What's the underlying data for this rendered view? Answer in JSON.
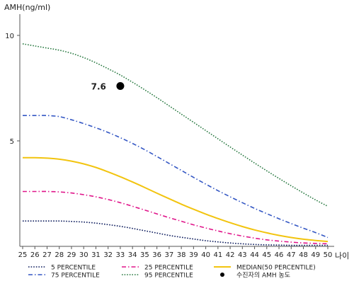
{
  "chart_data": {
    "type": "line",
    "ylabel": "AMH(ng/ml)",
    "xlabel": "나이",
    "ylim": [
      0,
      11
    ],
    "xlim": [
      25,
      50
    ],
    "y_ticks": [
      5,
      10
    ],
    "x": [
      25,
      26,
      27,
      28,
      29,
      30,
      31,
      32,
      33,
      34,
      35,
      36,
      37,
      38,
      39,
      40,
      41,
      42,
      43,
      44,
      45,
      46,
      47,
      48,
      49,
      50
    ],
    "x_tick_labels": [
      "25",
      "26",
      "27",
      "28",
      "29",
      "30",
      "31",
      "32",
      "33",
      "34",
      "35",
      "36",
      "37",
      "38",
      "39",
      "40",
      "41",
      "42",
      "43",
      "44",
      "45",
      "46",
      "47",
      "48",
      "49",
      "50"
    ],
    "grid": false,
    "legend_placement": "bottom",
    "series": [
      {
        "name": "5 PERCENTILE",
        "color": "#0b1a5c",
        "dash": "dotted",
        "values": [
          1.2,
          1.2,
          1.2,
          1.2,
          1.18,
          1.15,
          1.1,
          1.03,
          0.95,
          0.85,
          0.74,
          0.63,
          0.52,
          0.43,
          0.35,
          0.27,
          0.21,
          0.16,
          0.12,
          0.09,
          0.07,
          0.06,
          0.05,
          0.05,
          0.05,
          0.05
        ]
      },
      {
        "name": "25 PERCENTILE",
        "color": "#e0158a",
        "dash": "dashdot",
        "values": [
          2.6,
          2.6,
          2.6,
          2.58,
          2.53,
          2.45,
          2.35,
          2.22,
          2.07,
          1.9,
          1.72,
          1.54,
          1.36,
          1.19,
          1.02,
          0.87,
          0.73,
          0.6,
          0.49,
          0.39,
          0.31,
          0.25,
          0.2,
          0.16,
          0.14,
          0.12
        ]
      },
      {
        "name": "MEDIAN(50 PERCENTILE)",
        "color": "#f2c40f",
        "dash": "solid",
        "values": [
          4.2,
          4.2,
          4.18,
          4.13,
          4.04,
          3.91,
          3.74,
          3.53,
          3.3,
          3.05,
          2.79,
          2.52,
          2.26,
          2.0,
          1.76,
          1.53,
          1.32,
          1.12,
          0.94,
          0.78,
          0.64,
          0.52,
          0.42,
          0.34,
          0.28,
          0.23
        ]
      },
      {
        "name": "75 PERCENTILE",
        "color": "#3457c4",
        "dash": "dashdot",
        "values": [
          6.2,
          6.2,
          6.2,
          6.15,
          6.0,
          5.82,
          5.62,
          5.4,
          5.15,
          4.88,
          4.58,
          4.26,
          3.93,
          3.6,
          3.27,
          2.95,
          2.64,
          2.35,
          2.07,
          1.8,
          1.55,
          1.31,
          1.08,
          0.86,
          0.65,
          0.42
        ]
      },
      {
        "name": "95 PERCENTILE",
        "color": "#2a7a42",
        "dash": "dotted",
        "values": [
          9.6,
          9.5,
          9.4,
          9.3,
          9.15,
          8.95,
          8.7,
          8.42,
          8.12,
          7.78,
          7.42,
          7.05,
          6.66,
          6.27,
          5.88,
          5.49,
          5.1,
          4.71,
          4.33,
          3.95,
          3.58,
          3.22,
          2.87,
          2.53,
          2.2,
          1.9
        ]
      }
    ],
    "highlight_point": {
      "name": "수진자의 AMH 농도",
      "x": 33,
      "y": 7.6,
      "label": "7.6",
      "color": "#000000"
    }
  }
}
